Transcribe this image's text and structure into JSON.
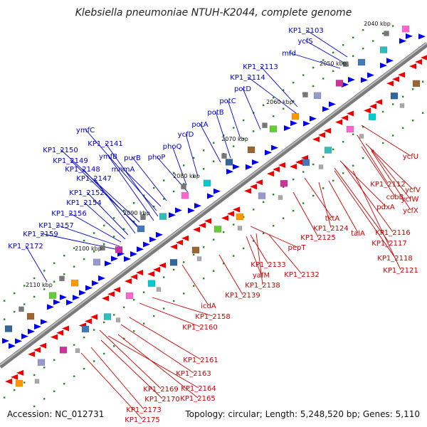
{
  "title": "Klebsiella pneumoniae NTUH-K2044, complete genome",
  "footer": {
    "accession": "Accession: NC_012731",
    "summary": "Topology: circular; Length: 5,248,520 bp; Genes: 5,110"
  },
  "colors": {
    "plus_strand": "#0000ee",
    "minus_strand": "#ee0000",
    "blue_label": "#0000cc",
    "red_label": "#cc0000",
    "backbone": "#888888",
    "tick_dots": "#228b22"
  },
  "kbp_marks": [
    "2040 kbp",
    "2050 kbp",
    "2060 kbp",
    "2070 kbp",
    "2080 kbp",
    "2090 kbp",
    "2100 kbp",
    "2110 kbp"
  ],
  "labels_plus": [
    "KP1_2103",
    "ycfS",
    "mfd",
    "KP1_2113",
    "KP1_2114",
    "potD",
    "potC",
    "potB",
    "potA",
    "ycfD",
    "phoQ",
    "phoP",
    "purB",
    "mnmA",
    "ymfC",
    "KP1_2141",
    "ymfB",
    "KP1_2150",
    "KP1_2149",
    "KP1_2148",
    "KP1_2147",
    "KP1_2152",
    "KP1_2154",
    "KP1_2156",
    "KP1_2157",
    "KP1_2159",
    "KP1_2172"
  ],
  "labels_minus": [
    "ycfU",
    "KP1_2112",
    "ycfV",
    "cobB",
    "ycfW",
    "ycfX",
    "pdxA",
    "tktA",
    "KP1_2116",
    "KP1_2124",
    "talA",
    "KP1_2117",
    "KP1_2125",
    "KP1_2118",
    "pepT",
    "KP1_2121",
    "KP1_2133",
    "KP1_2132",
    "yafM",
    "KP1_2138",
    "KP1_2139",
    "icdA",
    "KP1_2158",
    "KP1_2160",
    "KP1_2161",
    "KP1_2163",
    "KP1_2164",
    "KP1_2169",
    "KP1_2165",
    "KP1_2170",
    "KP1_2173",
    "KP1_2175"
  ]
}
